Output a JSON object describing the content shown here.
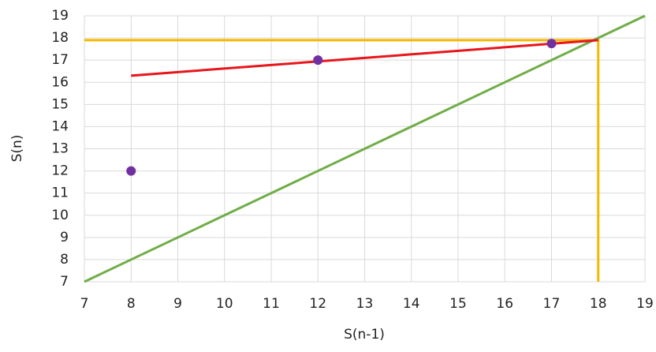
{
  "chart_data": {
    "type": "scatter",
    "x_label": "S(n-1)",
    "y_label": "S(n)",
    "xlim": [
      7,
      19
    ],
    "ylim": [
      7,
      19
    ],
    "xticks": [
      7,
      8,
      9,
      10,
      11,
      12,
      13,
      14,
      15,
      16,
      17,
      18,
      19
    ],
    "yticks": [
      7,
      8,
      9,
      10,
      11,
      12,
      13,
      14,
      15,
      16,
      17,
      18,
      19
    ],
    "grid": true,
    "series": [
      {
        "mode": "line",
        "color": "#f5b800",
        "x": [
          7,
          18,
          18
        ],
        "values": [
          17.9,
          17.9,
          7
        ]
      },
      {
        "mode": "line",
        "color": "#70ad47",
        "x": [
          7,
          19
        ],
        "values": [
          7,
          19
        ]
      },
      {
        "mode": "line",
        "color": "#e8151b",
        "x": [
          8,
          18
        ],
        "values": [
          16.3,
          17.9
        ]
      },
      {
        "mode": "markers",
        "color": "#7030a0",
        "x": [
          8,
          12,
          17
        ],
        "values": [
          12,
          17,
          17.75
        ]
      }
    ]
  }
}
